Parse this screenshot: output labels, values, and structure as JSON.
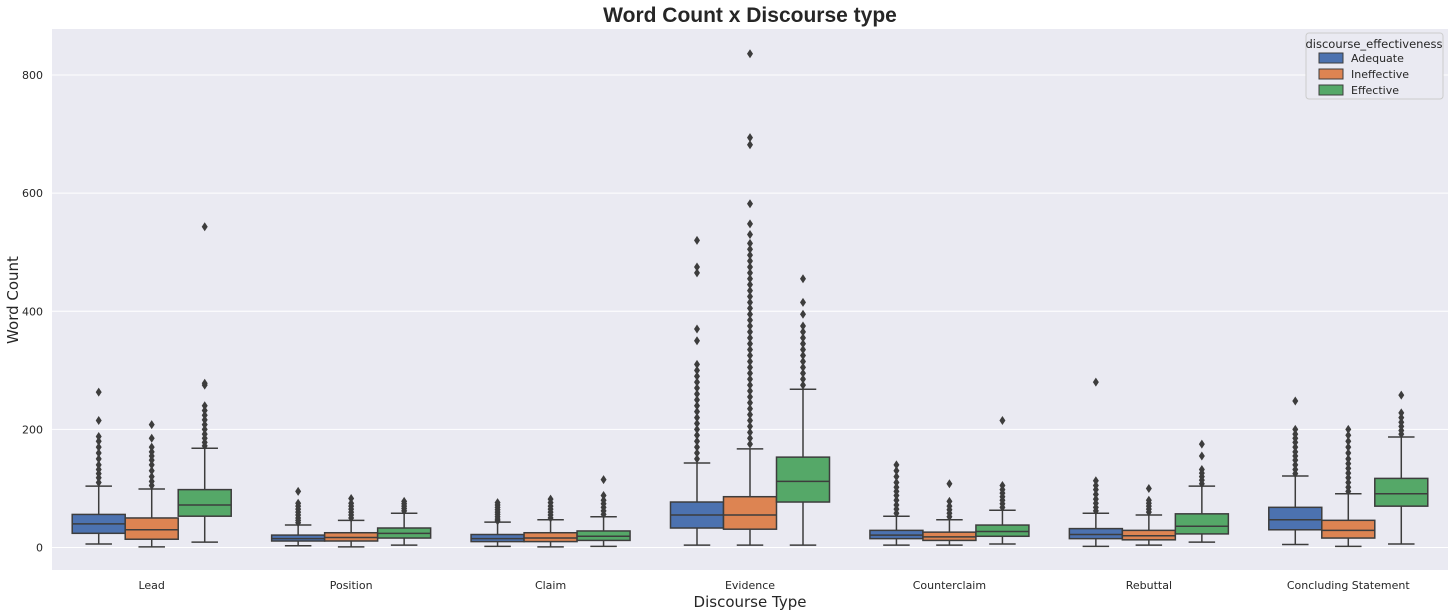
{
  "chart_data": {
    "type": "box",
    "title": "Word Count x Discourse type",
    "xlabel": "Discourse Type",
    "ylabel": "Word Count",
    "ylim": [
      -40,
      880
    ],
    "yticks": [
      0,
      200,
      400,
      600,
      800
    ],
    "grid": true,
    "legend_title": "discourse_effectiveness",
    "legend_position": "top-right",
    "categories": [
      "Lead",
      "Position",
      "Claim",
      "Evidence",
      "Counterclaim",
      "Rebuttal",
      "Concluding Statement"
    ],
    "series": [
      {
        "name": "Adequate",
        "color": "#4c72b0",
        "boxes": [
          {
            "whislo": 6,
            "q1": 24,
            "med": 40,
            "q3": 56,
            "whishi": 104,
            "fliers": [
              110,
              118,
              125,
              132,
              140,
              150,
              160,
              170,
              180,
              188,
              215,
              263
            ]
          },
          {
            "whislo": 3,
            "q1": 11,
            "med": 15,
            "q3": 21,
            "whishi": 38,
            "fliers": [
              42,
              46,
              50,
              55,
              60,
              65,
              70,
              75,
              95
            ]
          },
          {
            "whislo": 2,
            "q1": 10,
            "med": 15,
            "q3": 22,
            "whishi": 43,
            "fliers": [
              45,
              48,
              52,
              56,
              60,
              64,
              68,
              72,
              76
            ]
          },
          {
            "whislo": 4,
            "q1": 33,
            "med": 55,
            "q3": 77,
            "whishi": 143,
            "fliers": [
              150,
              160,
              170,
              180,
              190,
              200,
              210,
              220,
              230,
              240,
              250,
              260,
              270,
              280,
              290,
              300,
              310,
              350,
              370,
              465,
              475,
              520
            ]
          },
          {
            "whislo": 4,
            "q1": 15,
            "med": 21,
            "q3": 29,
            "whishi": 53,
            "fliers": [
              58,
              65,
              72,
              80,
              88,
              95,
              102,
              110,
              120,
              130,
              140
            ]
          },
          {
            "whislo": 2,
            "q1": 15,
            "med": 22,
            "q3": 32,
            "whishi": 58,
            "fliers": [
              62,
              68,
              75,
              82,
              90,
              98,
              105,
              113,
              280
            ]
          },
          {
            "whislo": 5,
            "q1": 30,
            "med": 47,
            "q3": 68,
            "whishi": 121,
            "fliers": [
              125,
              132,
              140,
              148,
              155,
              162,
              170,
              178,
              185,
              192,
              200,
              248
            ]
          }
        ]
      },
      {
        "name": "Ineffective",
        "color": "#dd8452",
        "boxes": [
          {
            "whislo": 1,
            "q1": 14,
            "med": 30,
            "q3": 50,
            "whishi": 99,
            "fliers": [
              105,
              112,
              120,
              130,
              140,
              148,
              155,
              162,
              170,
              185,
              208
            ]
          },
          {
            "whislo": 1,
            "q1": 11,
            "med": 17,
            "q3": 25,
            "whishi": 46,
            "fliers": [
              50,
              55,
              60,
              65,
              70,
              75,
              83
            ]
          },
          {
            "whislo": 1,
            "q1": 10,
            "med": 16,
            "q3": 25,
            "whishi": 47,
            "fliers": [
              50,
              55,
              60,
              65,
              70,
              76,
              82
            ]
          },
          {
            "whislo": 4,
            "q1": 31,
            "med": 55,
            "q3": 86,
            "whishi": 167,
            "fliers": [
              175,
              185,
              195,
              205,
              215,
              225,
              235,
              245,
              255,
              265,
              275,
              285,
              295,
              305,
              315,
              325,
              335,
              345,
              355,
              365,
              375,
              385,
              395,
              405,
              415,
              425,
              435,
              445,
              455,
              465,
              475,
              485,
              495,
              505,
              515,
              530,
              548,
              582,
              682,
              694,
              836
            ]
          },
          {
            "whislo": 4,
            "q1": 12,
            "med": 18,
            "q3": 26,
            "whishi": 47,
            "fliers": [
              52,
              58,
              64,
              70,
              78,
              108
            ]
          },
          {
            "whislo": 4,
            "q1": 13,
            "med": 20,
            "q3": 29,
            "whishi": 55,
            "fliers": [
              60,
              65,
              70,
              75,
              80,
              100
            ]
          },
          {
            "whislo": 2,
            "q1": 16,
            "med": 29,
            "q3": 46,
            "whishi": 91,
            "fliers": [
              95,
              102,
              110,
              118,
              126,
              134,
              142,
              150,
              160,
              170,
              180,
              190,
              200
            ]
          }
        ]
      },
      {
        "name": "Effective",
        "color": "#55a868",
        "boxes": [
          {
            "whislo": 9,
            "q1": 53,
            "med": 72,
            "q3": 98,
            "whishi": 168,
            "fliers": [
              172,
              178,
              185,
              192,
              200,
              208,
              216,
              224,
              232,
              240,
              275,
              278,
              543
            ]
          },
          {
            "whislo": 4,
            "q1": 16,
            "med": 24,
            "q3": 33,
            "whishi": 58,
            "fliers": [
              62,
              66,
              70,
              74,
              78
            ]
          },
          {
            "whislo": 2,
            "q1": 12,
            "med": 19,
            "q3": 28,
            "whishi": 52,
            "fliers": [
              56,
              62,
              68,
              74,
              80,
              88,
              115
            ]
          },
          {
            "whislo": 4,
            "q1": 77,
            "med": 112,
            "q3": 153,
            "whishi": 268,
            "fliers": [
              275,
              285,
              295,
              305,
              315,
              325,
              335,
              345,
              355,
              365,
              375,
              395,
              415,
              455
            ]
          },
          {
            "whislo": 6,
            "q1": 19,
            "med": 27,
            "q3": 38,
            "whishi": 63,
            "fliers": [
              68,
              74,
              80,
              86,
              92,
              98,
              105,
              215
            ]
          },
          {
            "whislo": 9,
            "q1": 23,
            "med": 36,
            "q3": 57,
            "whishi": 104,
            "fliers": [
              108,
              114,
              120,
              126,
              132,
              155,
              175
            ]
          },
          {
            "whislo": 6,
            "q1": 70,
            "med": 91,
            "q3": 117,
            "whishi": 187,
            "fliers": [
              192,
              198,
              205,
              212,
              220,
              228,
              258
            ]
          }
        ]
      }
    ]
  }
}
